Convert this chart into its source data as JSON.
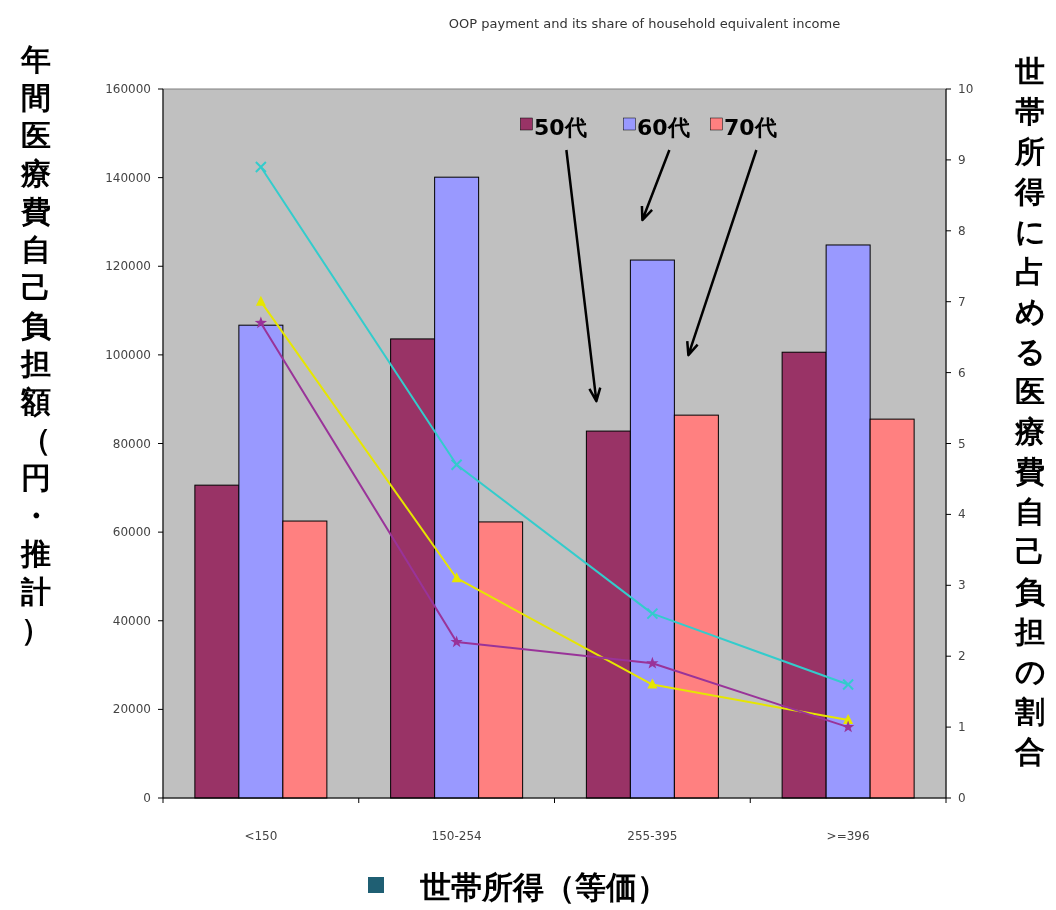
{
  "chart_data": {
    "type": "bar",
    "title": "OOP payment and its share of household equivalent income",
    "xlabel": "世帯所得（等価）",
    "ylabel": "年間医療費自己負担額（円・推計）",
    "y2label": "世帯所得に占める医療費自己負担の割合",
    "categories": [
      "<150",
      "150-254",
      "255-395",
      ">=396"
    ],
    "series": [
      {
        "name": "50代",
        "color": "#993366",
        "values": [
          70600,
          103600,
          82800,
          100600
        ]
      },
      {
        "name": "60代",
        "color": "#9999ff",
        "values": [
          106700,
          140100,
          121400,
          124800
        ]
      },
      {
        "name": "70代",
        "color": "#ff8080",
        "values": [
          62500,
          62300,
          86400,
          85500
        ]
      },
      {
        "type": "line",
        "axis": "y2",
        "color": "#33cccc",
        "marker": "cross",
        "values": [
          8.9,
          4.7,
          2.6,
          1.6
        ]
      },
      {
        "type": "line",
        "axis": "y2",
        "color": "#e6e600",
        "marker": "triangle",
        "values": [
          7.0,
          3.1,
          1.6,
          1.1
        ]
      },
      {
        "type": "line",
        "axis": "y2",
        "color": "#993399",
        "marker": "star",
        "values": [
          6.7,
          2.2,
          1.9,
          1.0
        ]
      }
    ],
    "ylim": [
      0,
      160000
    ],
    "yticks": [
      0,
      20000,
      40000,
      60000,
      80000,
      100000,
      120000,
      140000,
      160000
    ],
    "y2lim": [
      0,
      10
    ],
    "y2ticks": [
      0,
      1,
      2,
      3,
      4,
      5,
      6,
      7,
      8,
      9,
      10
    ],
    "grid": false,
    "legend": "top"
  }
}
